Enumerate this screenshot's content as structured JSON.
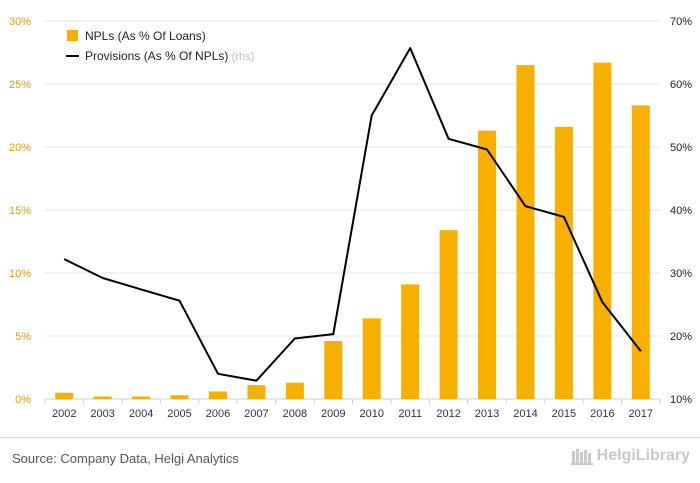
{
  "chart_data": {
    "type": "bar+line",
    "categories": [
      "2002",
      "2003",
      "2004",
      "2005",
      "2006",
      "2007",
      "2008",
      "2009",
      "2010",
      "2011",
      "2012",
      "2013",
      "2014",
      "2015",
      "2016",
      "2017"
    ],
    "series": [
      {
        "name": "NPLs (As % Of Loans)",
        "type": "bar",
        "axis": "left",
        "values": [
          0.5,
          0.2,
          0.2,
          0.3,
          0.6,
          1.1,
          1.3,
          4.6,
          6.4,
          9.1,
          13.4,
          21.3,
          26.5,
          21.6,
          26.7,
          23.3
        ]
      },
      {
        "name": "Provisions (As % Of NPLs)",
        "name_suffix": "(rhs)",
        "type": "line",
        "axis": "right",
        "values": [
          32.2,
          29.2,
          27.4,
          25.6,
          14.0,
          12.9,
          19.6,
          20.3,
          55.0,
          65.7,
          51.3,
          49.6,
          40.6,
          38.9,
          25.4,
          17.6
        ]
      }
    ],
    "y_left": {
      "min": 0,
      "max": 30,
      "ticks": [
        "0%",
        "5%",
        "10%",
        "15%",
        "20%",
        "25%",
        "30%"
      ],
      "tick_values": [
        0,
        5,
        10,
        15,
        20,
        25,
        30
      ]
    },
    "y_right": {
      "min": 10,
      "max": 70,
      "ticks": [
        "10%",
        "20%",
        "30%",
        "40%",
        "50%",
        "60%",
        "70%"
      ],
      "tick_values": [
        10,
        20,
        30,
        40,
        50,
        60,
        70
      ]
    },
    "grid": true,
    "legend_position": "top-left"
  },
  "colors": {
    "bar": "#f7b000",
    "line": "#000000",
    "left_ticks": "#e0a000",
    "right_ticks": "#222222",
    "grid": "#e6e6e6",
    "rhs_note": "#bbbbbb"
  },
  "footer": {
    "source": "Source: Company Data, Helgi Analytics",
    "brand": "HelgiLibrary",
    "brand_icon": "library-icon"
  }
}
